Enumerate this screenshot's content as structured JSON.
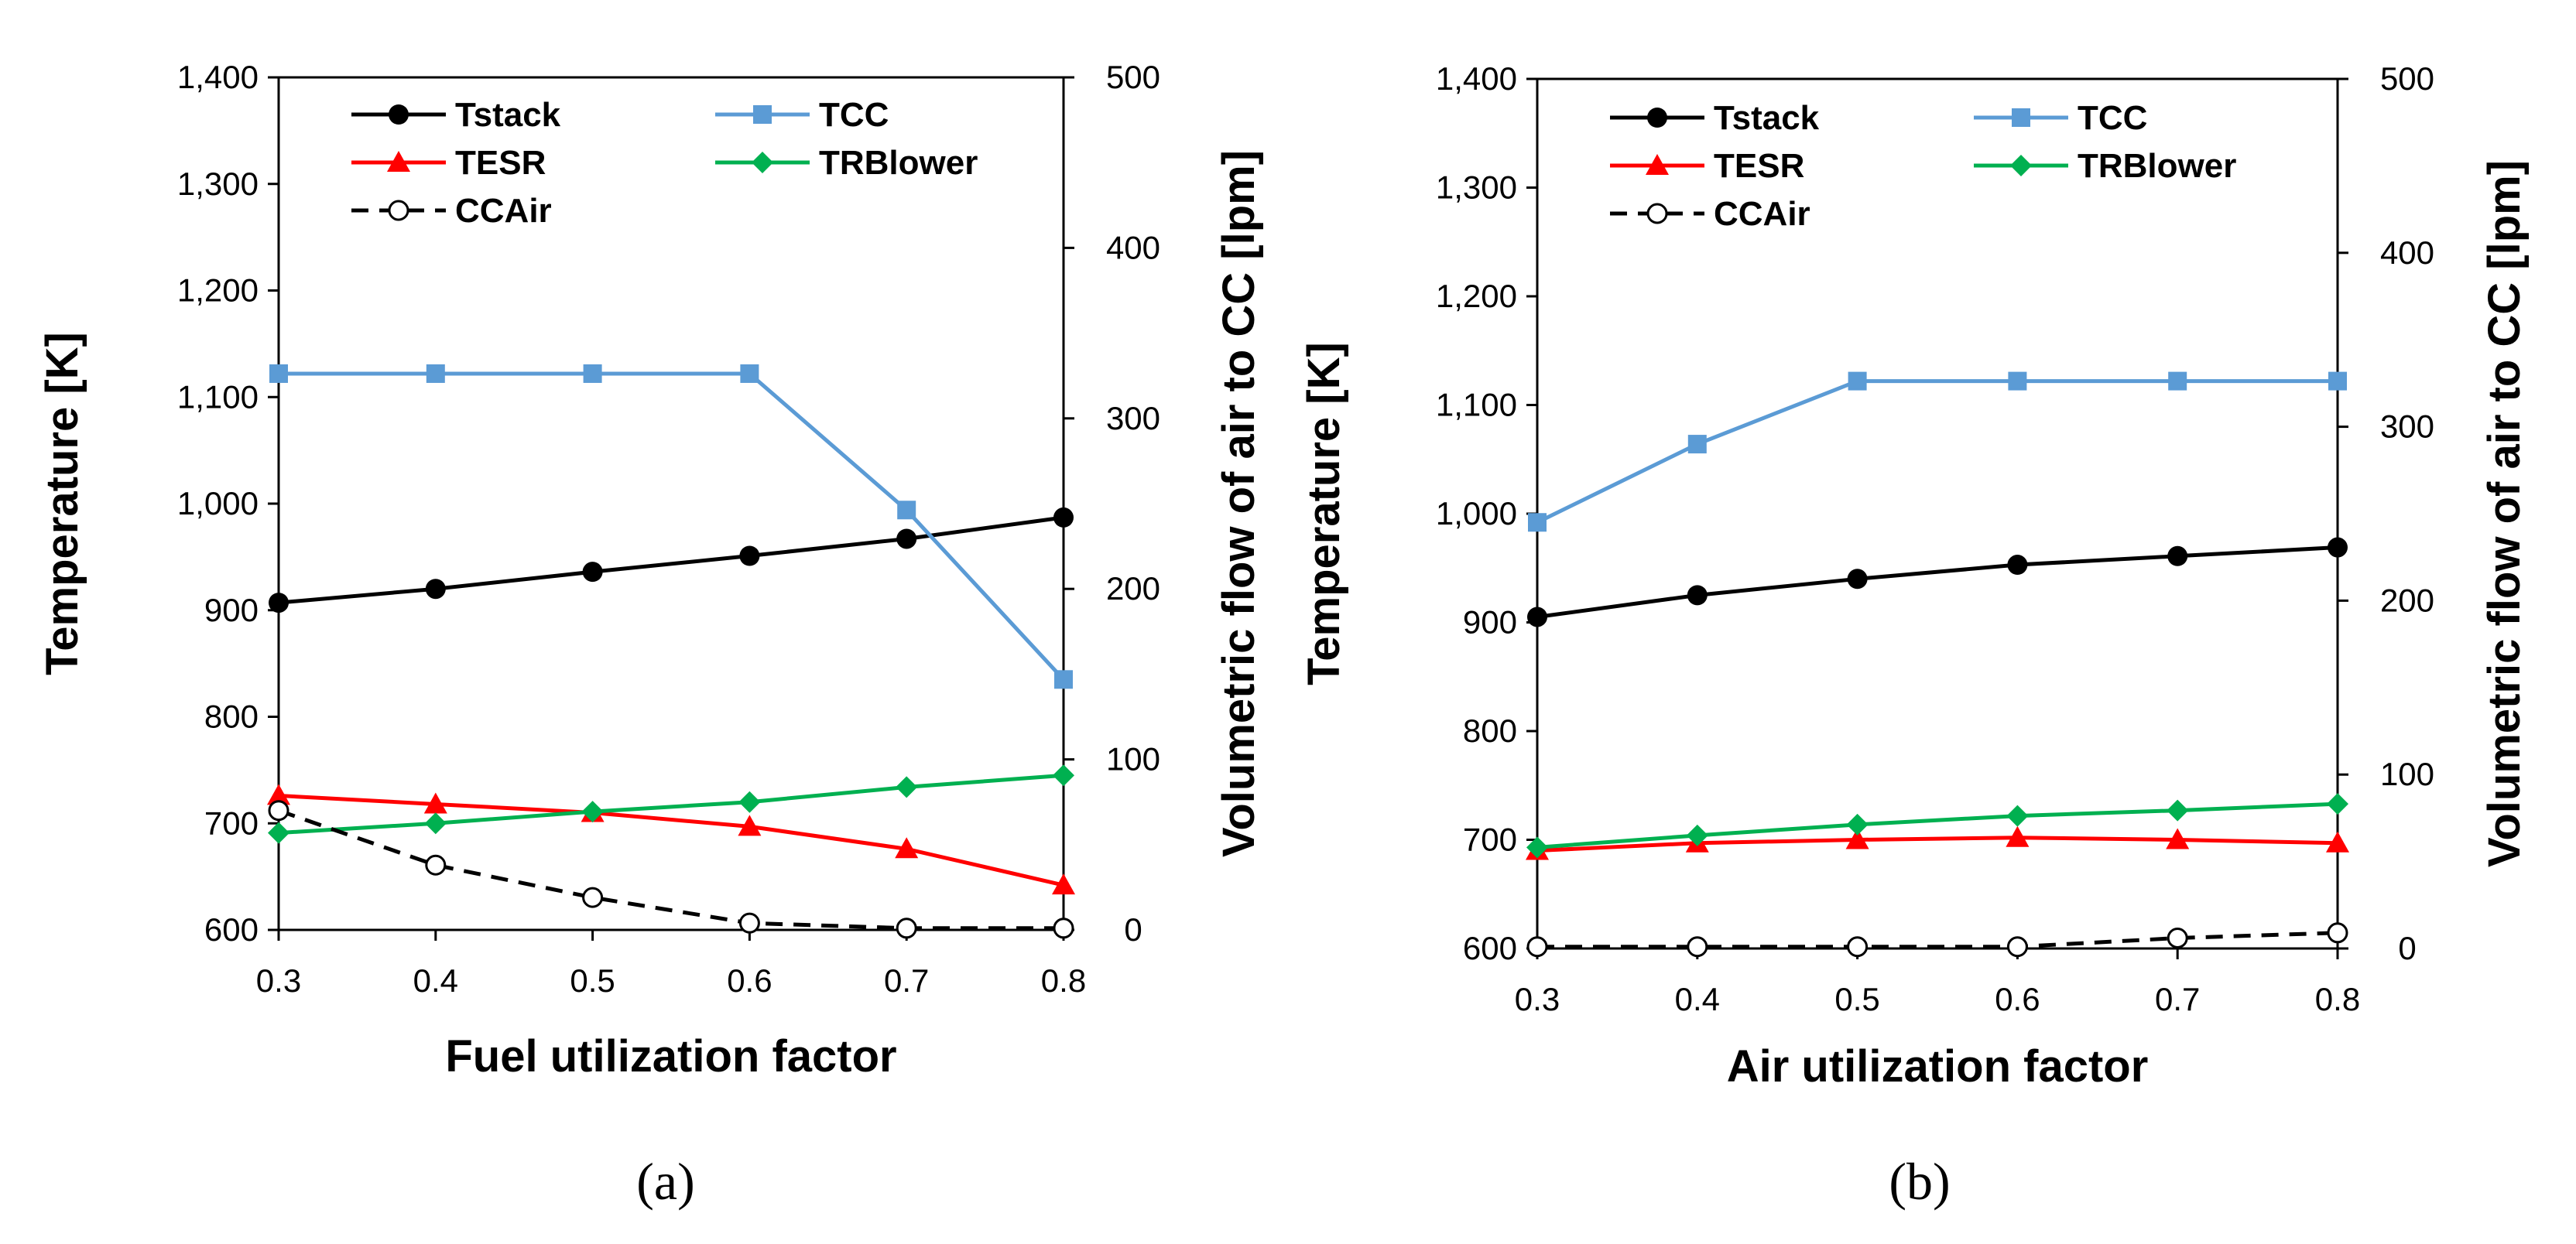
{
  "chart_data": [
    {
      "panel_label": "(a)",
      "type": "line",
      "xlabel": "Fuel utilization factor",
      "ylabel": "Temperature [K]",
      "y2label": "Volumetric flow of air to CC [lpm]",
      "xlim": [
        0.3,
        0.8
      ],
      "ylim": [
        600,
        1400
      ],
      "y2lim": [
        0,
        500
      ],
      "x_ticks": [
        "0.3",
        "0.4",
        "0.5",
        "0.6",
        "0.7",
        "0.8"
      ],
      "y_ticks": [
        "600",
        "700",
        "800",
        "900",
        "1,000",
        "1,100",
        "1,200",
        "1,300",
        "1,400"
      ],
      "y2_ticks": [
        "0",
        "100",
        "200",
        "300",
        "400",
        "500"
      ],
      "x": [
        0.3,
        0.4,
        0.5,
        0.6,
        0.7,
        0.8
      ],
      "series": [
        {
          "name": "Tstack",
          "color": "#000000",
          "marker": "circle",
          "axis": "left",
          "values": [
            907,
            920,
            936,
            951,
            967,
            987
          ]
        },
        {
          "name": "TCC",
          "color": "#5b9bd5",
          "marker": "square",
          "axis": "left",
          "values": [
            1122,
            1122,
            1122,
            1122,
            994,
            835
          ]
        },
        {
          "name": "TESR",
          "color": "#ff0000",
          "marker": "triangle",
          "axis": "left",
          "values": [
            726,
            718,
            710,
            697,
            676,
            642
          ]
        },
        {
          "name": "TRBlower",
          "color": "#00b050",
          "marker": "diamond",
          "axis": "left",
          "values": [
            691,
            700,
            711,
            720,
            734,
            745
          ]
        },
        {
          "name": "CCAir",
          "color": "#000000",
          "marker": "open-circle",
          "axis": "right",
          "dashed": true,
          "values": [
            70,
            38,
            19,
            4,
            1,
            1
          ]
        }
      ],
      "legend_placement": "top-left"
    },
    {
      "panel_label": "(b)",
      "type": "line",
      "xlabel": "Air utilization factor",
      "ylabel": "Temperature [K]",
      "y2label": "Volumetric flow of air to CC [lpm]",
      "xlim": [
        0.3,
        0.8
      ],
      "ylim": [
        600,
        1400
      ],
      "y2lim": [
        0,
        500
      ],
      "x_ticks": [
        "0.3",
        "0.4",
        "0.5",
        "0.6",
        "0.7",
        "0.8"
      ],
      "y_ticks": [
        "600",
        "700",
        "800",
        "900",
        "1,000",
        "1,100",
        "1,200",
        "1,300",
        "1,400"
      ],
      "y2_ticks": [
        "0",
        "100",
        "200",
        "300",
        "400",
        "500"
      ],
      "x": [
        0.3,
        0.4,
        0.5,
        0.6,
        0.7,
        0.8
      ],
      "series": [
        {
          "name": "Tstack",
          "color": "#000000",
          "marker": "circle",
          "axis": "left",
          "values": [
            905,
            925,
            940,
            953,
            961,
            969
          ]
        },
        {
          "name": "TCC",
          "color": "#5b9bd5",
          "marker": "square",
          "axis": "left",
          "values": [
            992,
            1064,
            1122,
            1122,
            1122,
            1122
          ]
        },
        {
          "name": "TESR",
          "color": "#ff0000",
          "marker": "triangle",
          "axis": "left",
          "values": [
            690,
            697,
            700,
            702,
            700,
            697
          ]
        },
        {
          "name": "TRBlower",
          "color": "#00b050",
          "marker": "diamond",
          "axis": "left",
          "values": [
            693,
            704,
            714,
            722,
            727,
            733
          ]
        },
        {
          "name": "CCAir",
          "color": "#000000",
          "marker": "open-circle",
          "axis": "right",
          "dashed": true,
          "values": [
            1,
            1,
            1,
            1,
            6,
            9
          ]
        }
      ],
      "legend_placement": "top-left"
    }
  ]
}
